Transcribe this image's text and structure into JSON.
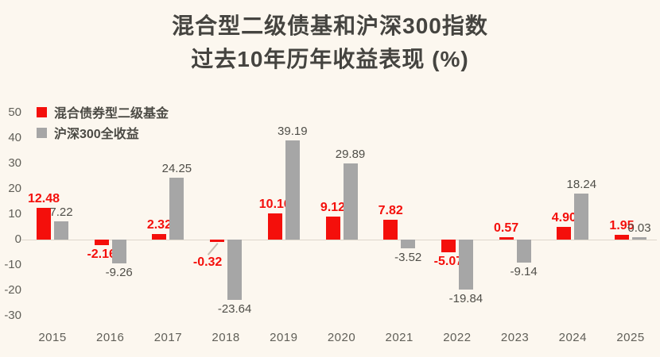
{
  "title": {
    "line1": "混合型二级债基和沪深300指数",
    "line2": "过去10年历年收益表现 (%)"
  },
  "colors": {
    "background": "#fcf7ef",
    "fund_red": "#f40f0b",
    "index_gray": "#a6a6a6",
    "title_text": "#454440",
    "axis_text": "#605f58",
    "index_label_text": "#4f4e48",
    "zero_line": "#ddd7cc",
    "leader_line": "#c8beb2"
  },
  "legend": {
    "items": [
      {
        "label": "混合债券型二级基金",
        "color": "#f40f0b",
        "icon": "red-square-swatch"
      },
      {
        "label": "沪深300全收益",
        "color": "#a6a6a6",
        "icon": "gray-square-swatch"
      }
    ]
  },
  "chart_data": {
    "type": "bar",
    "title": "混合型二级债基和沪深300指数 过去10年历年收益表现 (%)",
    "categories": [
      "2015",
      "2016",
      "2017",
      "2018",
      "2019",
      "2020",
      "2021",
      "2022",
      "2023",
      "2024",
      "2025"
    ],
    "series": [
      {
        "name": "混合债券型二级基金",
        "color": "#f40f0b",
        "values": [
          12.48,
          -2.16,
          2.32,
          -0.32,
          10.16,
          9.12,
          7.82,
          -5.07,
          0.57,
          4.9,
          1.95
        ]
      },
      {
        "name": "沪深300全收益",
        "color": "#a6a6a6",
        "values": [
          7.22,
          -9.26,
          24.25,
          -23.64,
          39.19,
          29.89,
          -3.52,
          -19.84,
          -9.14,
          18.24,
          0.03
        ]
      }
    ],
    "ylim": [
      -30,
      50
    ],
    "yticks": [
      50,
      40,
      30,
      20,
      10,
      0,
      -10,
      -20,
      -30
    ],
    "grid": false,
    "zero_line": true,
    "value_labels": true,
    "legend_position": "top-left",
    "label_overrides": [
      {
        "series": 0,
        "category": "2018",
        "dx": -12,
        "dy": 14,
        "leader": true
      }
    ]
  }
}
